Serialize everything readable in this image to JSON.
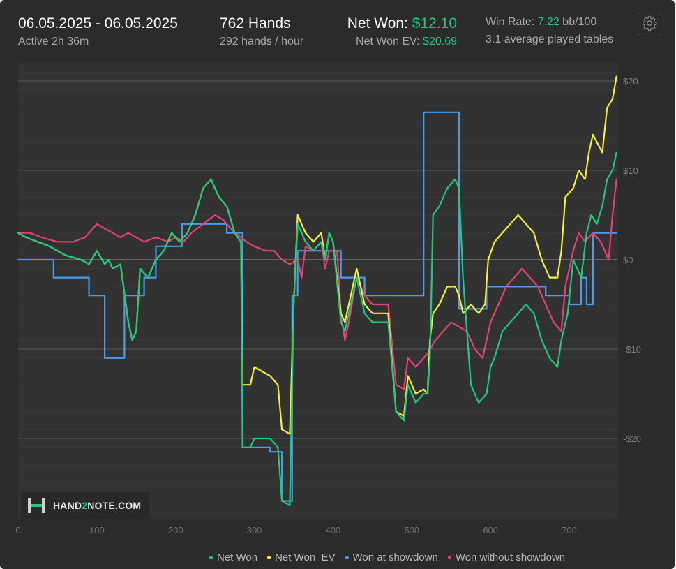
{
  "header": {
    "date_range": "06.05.2025 - 06.05.2025",
    "active": "Active 2h 36m",
    "hands": "762 Hands",
    "hands_per_hour": "292 hands / hour",
    "net_won_label": "Net Won:",
    "net_won_value": "$12.10",
    "net_won_ev_label": "Net Won  EV:",
    "net_won_ev_value": "$20.69",
    "win_rate_label": "Win Rate:",
    "win_rate_value": "7.22",
    "win_rate_unit": "bb/100",
    "avg_tables": "3.1 average played tables"
  },
  "logo": {
    "text_a": "HAND",
    "text_b": "2",
    "text_c": "NOTE.COM"
  },
  "colors": {
    "green": "#1fc980",
    "yellow": "#f5f03a",
    "blue": "#4a9bf0",
    "pink": "#e6407a",
    "accent": "#1fc980"
  },
  "icons": {
    "settings": "gear-icon"
  },
  "chart_data": {
    "type": "line",
    "xlim": [
      0,
      762
    ],
    "ylim": [
      -29,
      22
    ],
    "x_ticks": [
      0,
      100,
      200,
      300,
      400,
      500,
      600,
      700
    ],
    "x_tick_labels": [
      "0",
      "100",
      "200",
      "300",
      "400",
      "500",
      "600",
      "700"
    ],
    "y_ticks": [
      20,
      10,
      0,
      -10,
      -20
    ],
    "y_tick_labels": [
      "$20",
      "$10",
      "$0",
      "-$10",
      "-$20"
    ],
    "grid": true,
    "legend_position": "bottom",
    "series": [
      {
        "name": "Net Won",
        "color": "#1fc980",
        "points": [
          [
            0,
            3
          ],
          [
            10,
            2.5
          ],
          [
            40,
            1.5
          ],
          [
            60,
            0.5
          ],
          [
            80,
            0
          ],
          [
            90,
            -0.5
          ],
          [
            100,
            1
          ],
          [
            110,
            -0.5
          ],
          [
            115,
            0
          ],
          [
            120,
            -1
          ],
          [
            130,
            -0.5
          ],
          [
            140,
            -7
          ],
          [
            145,
            -9
          ],
          [
            150,
            -8
          ],
          [
            155,
            -1
          ],
          [
            165,
            -2
          ],
          [
            175,
            0
          ],
          [
            185,
            1
          ],
          [
            195,
            3
          ],
          [
            205,
            2
          ],
          [
            215,
            3
          ],
          [
            225,
            5
          ],
          [
            235,
            8
          ],
          [
            245,
            9
          ],
          [
            255,
            7
          ],
          [
            265,
            6
          ],
          [
            275,
            3
          ],
          [
            283,
            2
          ],
          [
            285,
            -21
          ],
          [
            295,
            -21
          ],
          [
            300,
            -20
          ],
          [
            310,
            -20
          ],
          [
            320,
            -20
          ],
          [
            330,
            -21
          ],
          [
            335,
            -27
          ],
          [
            345,
            -27.5
          ],
          [
            350,
            -5
          ],
          [
            355,
            4
          ],
          [
            365,
            2
          ],
          [
            375,
            1
          ],
          [
            385,
            2
          ],
          [
            390,
            0
          ],
          [
            395,
            3
          ],
          [
            400,
            2
          ],
          [
            410,
            -7
          ],
          [
            415,
            -8
          ],
          [
            420,
            -6
          ],
          [
            430,
            -2
          ],
          [
            440,
            -6
          ],
          [
            450,
            -7
          ],
          [
            460,
            -7
          ],
          [
            470,
            -7
          ],
          [
            480,
            -17
          ],
          [
            490,
            -18
          ],
          [
            495,
            -14
          ],
          [
            505,
            -16
          ],
          [
            515,
            -15
          ],
          [
            520,
            -15
          ],
          [
            523,
            -11
          ],
          [
            527,
            5
          ],
          [
            535,
            6
          ],
          [
            545,
            8
          ],
          [
            555,
            9
          ],
          [
            560,
            8
          ],
          [
            565,
            -2
          ],
          [
            575,
            -14
          ],
          [
            585,
            -16
          ],
          [
            595,
            -15
          ],
          [
            600,
            -12
          ],
          [
            605,
            -11
          ],
          [
            615,
            -8
          ],
          [
            625,
            -7
          ],
          [
            635,
            -6
          ],
          [
            645,
            -5
          ],
          [
            655,
            -6
          ],
          [
            665,
            -9
          ],
          [
            675,
            -11
          ],
          [
            685,
            -12
          ],
          [
            690,
            -9
          ],
          [
            698,
            -6
          ],
          [
            705,
            0
          ],
          [
            715,
            -2
          ],
          [
            718,
            0
          ],
          [
            722,
            3
          ],
          [
            728,
            5
          ],
          [
            735,
            4
          ],
          [
            742,
            6
          ],
          [
            748,
            9
          ],
          [
            755,
            10
          ],
          [
            760,
            12
          ]
        ]
      },
      {
        "name": "Net Won  EV",
        "color": "#f5f03a",
        "points": [
          [
            0,
            3
          ],
          [
            10,
            2.5
          ],
          [
            40,
            1.5
          ],
          [
            60,
            0.5
          ],
          [
            80,
            0
          ],
          [
            90,
            -0.5
          ],
          [
            100,
            1
          ],
          [
            110,
            -0.5
          ],
          [
            115,
            0
          ],
          [
            120,
            -1
          ],
          [
            130,
            -0.5
          ],
          [
            140,
            -7
          ],
          [
            145,
            -9
          ],
          [
            150,
            -8
          ],
          [
            155,
            -1
          ],
          [
            165,
            -2
          ],
          [
            175,
            0
          ],
          [
            185,
            1
          ],
          [
            195,
            3
          ],
          [
            205,
            2
          ],
          [
            215,
            3
          ],
          [
            225,
            5
          ],
          [
            235,
            8
          ],
          [
            245,
            9
          ],
          [
            255,
            7
          ],
          [
            265,
            6
          ],
          [
            275,
            3
          ],
          [
            283,
            2
          ],
          [
            285,
            -14
          ],
          [
            295,
            -14
          ],
          [
            300,
            -12
          ],
          [
            310,
            -12.5
          ],
          [
            320,
            -13
          ],
          [
            330,
            -14
          ],
          [
            335,
            -19
          ],
          [
            345,
            -19.5
          ],
          [
            350,
            -5
          ],
          [
            355,
            5
          ],
          [
            365,
            3
          ],
          [
            375,
            2
          ],
          [
            385,
            3
          ],
          [
            390,
            0
          ],
          [
            395,
            3
          ],
          [
            400,
            2
          ],
          [
            410,
            -6
          ],
          [
            415,
            -7
          ],
          [
            420,
            -5
          ],
          [
            430,
            -1
          ],
          [
            440,
            -5
          ],
          [
            450,
            -6
          ],
          [
            460,
            -6
          ],
          [
            470,
            -6
          ],
          [
            480,
            -17
          ],
          [
            490,
            -17.5
          ],
          [
            495,
            -13
          ],
          [
            505,
            -15
          ],
          [
            515,
            -14.5
          ],
          [
            520,
            -15
          ],
          [
            523,
            -9
          ],
          [
            527,
            -6
          ],
          [
            535,
            -5
          ],
          [
            545,
            -3
          ],
          [
            555,
            -3
          ],
          [
            560,
            -4
          ],
          [
            565,
            -6
          ],
          [
            575,
            -5
          ],
          [
            585,
            -6
          ],
          [
            593,
            -5
          ],
          [
            597,
            0
          ],
          [
            605,
            2
          ],
          [
            615,
            3
          ],
          [
            625,
            4
          ],
          [
            635,
            5
          ],
          [
            645,
            4
          ],
          [
            655,
            3
          ],
          [
            665,
            0
          ],
          [
            675,
            -2
          ],
          [
            685,
            -2
          ],
          [
            690,
            1
          ],
          [
            695,
            7
          ],
          [
            705,
            8
          ],
          [
            712,
            10
          ],
          [
            720,
            9
          ],
          [
            725,
            12
          ],
          [
            730,
            14
          ],
          [
            742,
            12
          ],
          [
            748,
            17
          ],
          [
            755,
            18
          ],
          [
            760,
            20.5
          ]
        ]
      },
      {
        "name": "Won at showdown",
        "color": "#4a9bf0",
        "points": [
          [
            0,
            0
          ],
          [
            45,
            0
          ],
          [
            45,
            -2
          ],
          [
            90,
            -2
          ],
          [
            90,
            -4
          ],
          [
            110,
            -4
          ],
          [
            110,
            -11
          ],
          [
            135,
            -11
          ],
          [
            135,
            -4
          ],
          [
            160,
            -4
          ],
          [
            160,
            -2
          ],
          [
            175,
            -2
          ],
          [
            175,
            1.5
          ],
          [
            208,
            1.5
          ],
          [
            208,
            4
          ],
          [
            265,
            4
          ],
          [
            265,
            3
          ],
          [
            285,
            3
          ],
          [
            285,
            -21
          ],
          [
            320,
            -21
          ],
          [
            320,
            -21.5
          ],
          [
            335,
            -21.5
          ],
          [
            335,
            -27
          ],
          [
            348,
            -27
          ],
          [
            348,
            -4
          ],
          [
            355,
            -4
          ],
          [
            355,
            1
          ],
          [
            410,
            1
          ],
          [
            410,
            -2
          ],
          [
            440,
            -2
          ],
          [
            440,
            -4
          ],
          [
            515,
            -4
          ],
          [
            515,
            16.5
          ],
          [
            560,
            16.5
          ],
          [
            560,
            -5.5
          ],
          [
            595,
            -5.5
          ],
          [
            595,
            -3
          ],
          [
            670,
            -3
          ],
          [
            670,
            -4
          ],
          [
            700,
            -4
          ],
          [
            700,
            -5
          ],
          [
            715,
            -5
          ],
          [
            715,
            -2
          ],
          [
            722,
            -2
          ],
          [
            722,
            -5
          ],
          [
            730,
            -5
          ],
          [
            730,
            3
          ],
          [
            760,
            3
          ]
        ]
      },
      {
        "name": "Won without showdown",
        "color": "#e6407a",
        "points": [
          [
            0,
            3
          ],
          [
            15,
            3
          ],
          [
            30,
            2.5
          ],
          [
            50,
            2
          ],
          [
            70,
            2
          ],
          [
            85,
            2.5
          ],
          [
            90,
            3
          ],
          [
            100,
            4
          ],
          [
            110,
            3.5
          ],
          [
            120,
            3
          ],
          [
            130,
            2.5
          ],
          [
            140,
            3
          ],
          [
            150,
            2.5
          ],
          [
            160,
            2
          ],
          [
            175,
            2.5
          ],
          [
            190,
            2
          ],
          [
            200,
            2.5
          ],
          [
            210,
            2
          ],
          [
            220,
            3
          ],
          [
            235,
            4
          ],
          [
            250,
            5
          ],
          [
            260,
            4.5
          ],
          [
            275,
            3
          ],
          [
            283,
            2.5
          ],
          [
            290,
            2
          ],
          [
            300,
            1.5
          ],
          [
            315,
            1
          ],
          [
            325,
            1
          ],
          [
            335,
            0
          ],
          [
            345,
            -0.5
          ],
          [
            355,
            0
          ],
          [
            360,
            -2
          ],
          [
            365,
            1.5
          ],
          [
            375,
            1
          ],
          [
            385,
            2
          ],
          [
            390,
            -1
          ],
          [
            395,
            1
          ],
          [
            405,
            1
          ],
          [
            410,
            -6
          ],
          [
            415,
            -9
          ],
          [
            420,
            -7
          ],
          [
            430,
            -2
          ],
          [
            440,
            -4
          ],
          [
            450,
            -5
          ],
          [
            460,
            -5
          ],
          [
            470,
            -5
          ],
          [
            480,
            -14
          ],
          [
            490,
            -14.5
          ],
          [
            495,
            -11
          ],
          [
            505,
            -12
          ],
          [
            515,
            -11
          ],
          [
            520,
            -10.5
          ],
          [
            530,
            -9
          ],
          [
            540,
            -8
          ],
          [
            550,
            -7
          ],
          [
            560,
            -7.5
          ],
          [
            570,
            -8
          ],
          [
            580,
            -10
          ],
          [
            590,
            -11
          ],
          [
            600,
            -7
          ],
          [
            610,
            -5
          ],
          [
            620,
            -3
          ],
          [
            630,
            -2
          ],
          [
            640,
            -1
          ],
          [
            650,
            -2
          ],
          [
            660,
            -3
          ],
          [
            670,
            -5
          ],
          [
            680,
            -7
          ],
          [
            690,
            -8
          ],
          [
            695,
            -3
          ],
          [
            705,
            1
          ],
          [
            712,
            3
          ],
          [
            720,
            2
          ],
          [
            730,
            3
          ],
          [
            740,
            2
          ],
          [
            750,
            0
          ],
          [
            755,
            5
          ],
          [
            760,
            9
          ]
        ]
      }
    ]
  }
}
